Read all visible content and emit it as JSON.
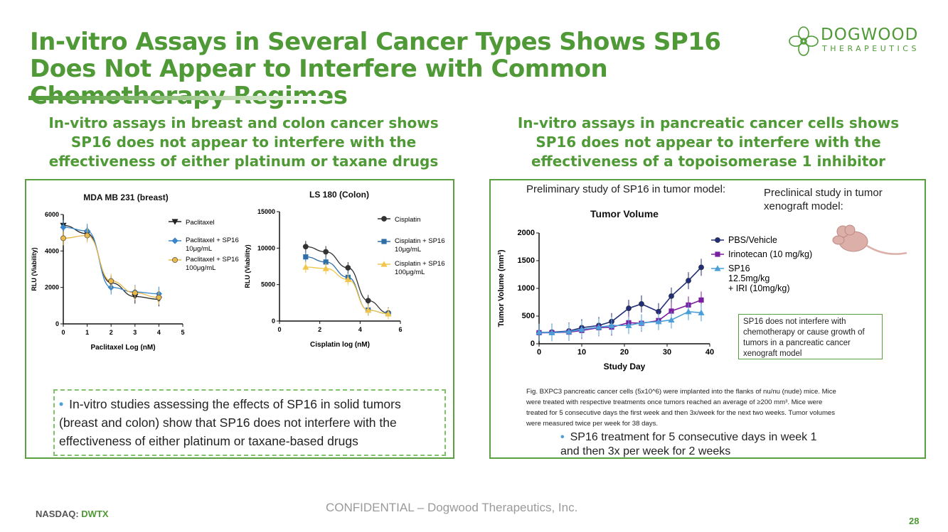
{
  "slide": {
    "title": "In-vitro Assays in Several Cancer Types Shows SP16 Does Not Appear to Interfere with Common Chemotherapy Regimes",
    "logo_name": "DOGWOOD",
    "logo_sub": "THERAPEUTICS",
    "left_heading": "In-vitro assays in breast and colon cancer shows SP16 does not appear to interfere with the effectiveness of either platinum or taxane drugs",
    "right_heading": "In-vitro assays in pancreatic cancer cells shows SP16 does not appear to interfere with the effectiveness of a topoisomerase 1 inhibitor",
    "left_bullet": "In-vitro studies assessing the effects of SP16 in solid tumors (breast and colon) show that SP16 does not interfere with the effectiveness of either platinum or taxane-based drugs",
    "right_prelim": "Preliminary study of SP16 in tumor model:",
    "right_preclinical": "Preclinical study in tumor xenograft model:",
    "xeno_note": "SP16 does not interfere with chemotherapy or cause growth of tumors in a pancreatic cancer xenograft model",
    "fig_caption": "Fig. BXPC3 pancreatic cancer cells (5x10^6) were implanted into the flanks of nu/nu (nude) mice. Mice were treated with respective treatments once tumors reached an average of ≥200 mm³. Mice were treated for 5 consecutive days the first week and then 3x/week for the next two weeks. Tumor volumes were measured twice per week for 38 days.",
    "right_bullet": "SP16 treatment for 5 consecutive days in week 1 and then 3x per week for 2 weeks",
    "footer_confidential": "CONFIDENTIAL –  Dogwood Therapeutics, Inc.",
    "footer_nasdaq_label": "NASDAQ:",
    "footer_ticker": "DWTX",
    "page_number": "28"
  },
  "colors": {
    "brand_green": "#4f9a36",
    "bullet_blue": "#4a9fd8"
  },
  "chart_data": [
    {
      "type": "line",
      "title": "MDA MB 231 (breast)",
      "xlabel": "Paclitaxel Log (nM)",
      "ylabel": "RLU (Viability)",
      "xlim": [
        0,
        5
      ],
      "ylim": [
        0,
        6000
      ],
      "xticks": [
        "0",
        "1",
        "2",
        "3",
        "4",
        "5"
      ],
      "yticks": [
        "0",
        "2000",
        "4000",
        "6000"
      ],
      "x": [
        0,
        1,
        2,
        3,
        4
      ],
      "series": [
        {
          "name": "Paclitaxel",
          "values": [
            5400,
            4950,
            2250,
            1500,
            1350
          ],
          "color": "#222222",
          "marker": "triangle-down"
        },
        {
          "name": "Paclitaxel + SP16 10μg/mL",
          "values": [
            5300,
            5100,
            2000,
            1750,
            1650
          ],
          "color": "#3a86c8",
          "marker": "diamond"
        },
        {
          "name": "Paclitaxel + SP16 100μg/mL",
          "values": [
            4700,
            4850,
            2350,
            1700,
            1450
          ],
          "color": "#e8b84a",
          "marker": "circle"
        }
      ]
    },
    {
      "type": "line",
      "title": "LS 180 (Colon)",
      "xlabel": "Cisplatin log (nM)",
      "ylabel": "RLU (Viability)",
      "xlim": [
        0,
        6
      ],
      "ylim": [
        0,
        15000
      ],
      "xticks": [
        "0",
        "2",
        "4",
        "6"
      ],
      "yticks": [
        "0",
        "5000",
        "10000",
        "15000"
      ],
      "x": [
        1.3,
        2.3,
        3.4,
        4.4,
        5.4
      ],
      "series": [
        {
          "name": "Cisplatin",
          "values": [
            10200,
            9500,
            7300,
            2800,
            1100
          ],
          "color": "#333333",
          "marker": "circle"
        },
        {
          "name": "Cisplatin + SP16 10μg/mL",
          "values": [
            8800,
            8100,
            6000,
            1500,
            1000
          ],
          "color": "#2f6fa8",
          "marker": "square"
        },
        {
          "name": "Cisplatin + SP16 100μg/mL",
          "values": [
            7400,
            7200,
            5700,
            1500,
            1000
          ],
          "color": "#f2c64a",
          "marker": "triangle"
        }
      ]
    },
    {
      "type": "line",
      "title": "Tumor Volume",
      "xlabel": "Study Day",
      "ylabel": "Tumor Volume (mm³)",
      "xlim": [
        0,
        40
      ],
      "ylim": [
        0,
        2000
      ],
      "xticks": [
        "0",
        "10",
        "20",
        "30",
        "40"
      ],
      "yticks": [
        "0",
        "500",
        "1000",
        "1500",
        "2000"
      ],
      "series": [
        {
          "name": "PBS/Vehicle",
          "x": [
            0,
            3,
            7,
            10,
            14,
            17,
            21,
            24,
            28,
            31,
            35,
            38
          ],
          "values": [
            200,
            210,
            230,
            290,
            330,
            400,
            640,
            720,
            580,
            860,
            1140,
            1380
          ],
          "color": "#1f2d7a",
          "marker": "circle"
        },
        {
          "name": "Irinotecan (10 mg/kg)",
          "x": [
            0,
            3,
            7,
            10,
            14,
            17,
            21,
            24,
            28,
            31,
            35,
            38
          ],
          "values": [
            200,
            200,
            210,
            240,
            290,
            300,
            380,
            370,
            420,
            590,
            700,
            790
          ],
          "color": "#7a1fa0",
          "marker": "square"
        },
        {
          "name": "SP16 12.5mg/kg + IRI (10mg/kg)",
          "x": [
            0,
            3,
            7,
            10,
            14,
            17,
            21,
            24,
            28,
            31,
            35,
            38
          ],
          "values": [
            210,
            200,
            220,
            260,
            300,
            330,
            330,
            380,
            400,
            430,
            580,
            560
          ],
          "color": "#4a9fd8",
          "marker": "triangle"
        }
      ],
      "legend": [
        "PBS/Vehicle",
        "Irinotecan (10 mg/kg)",
        "SP16",
        "12.5mg/kg",
        "+ IRI (10mg/kg)"
      ]
    }
  ]
}
